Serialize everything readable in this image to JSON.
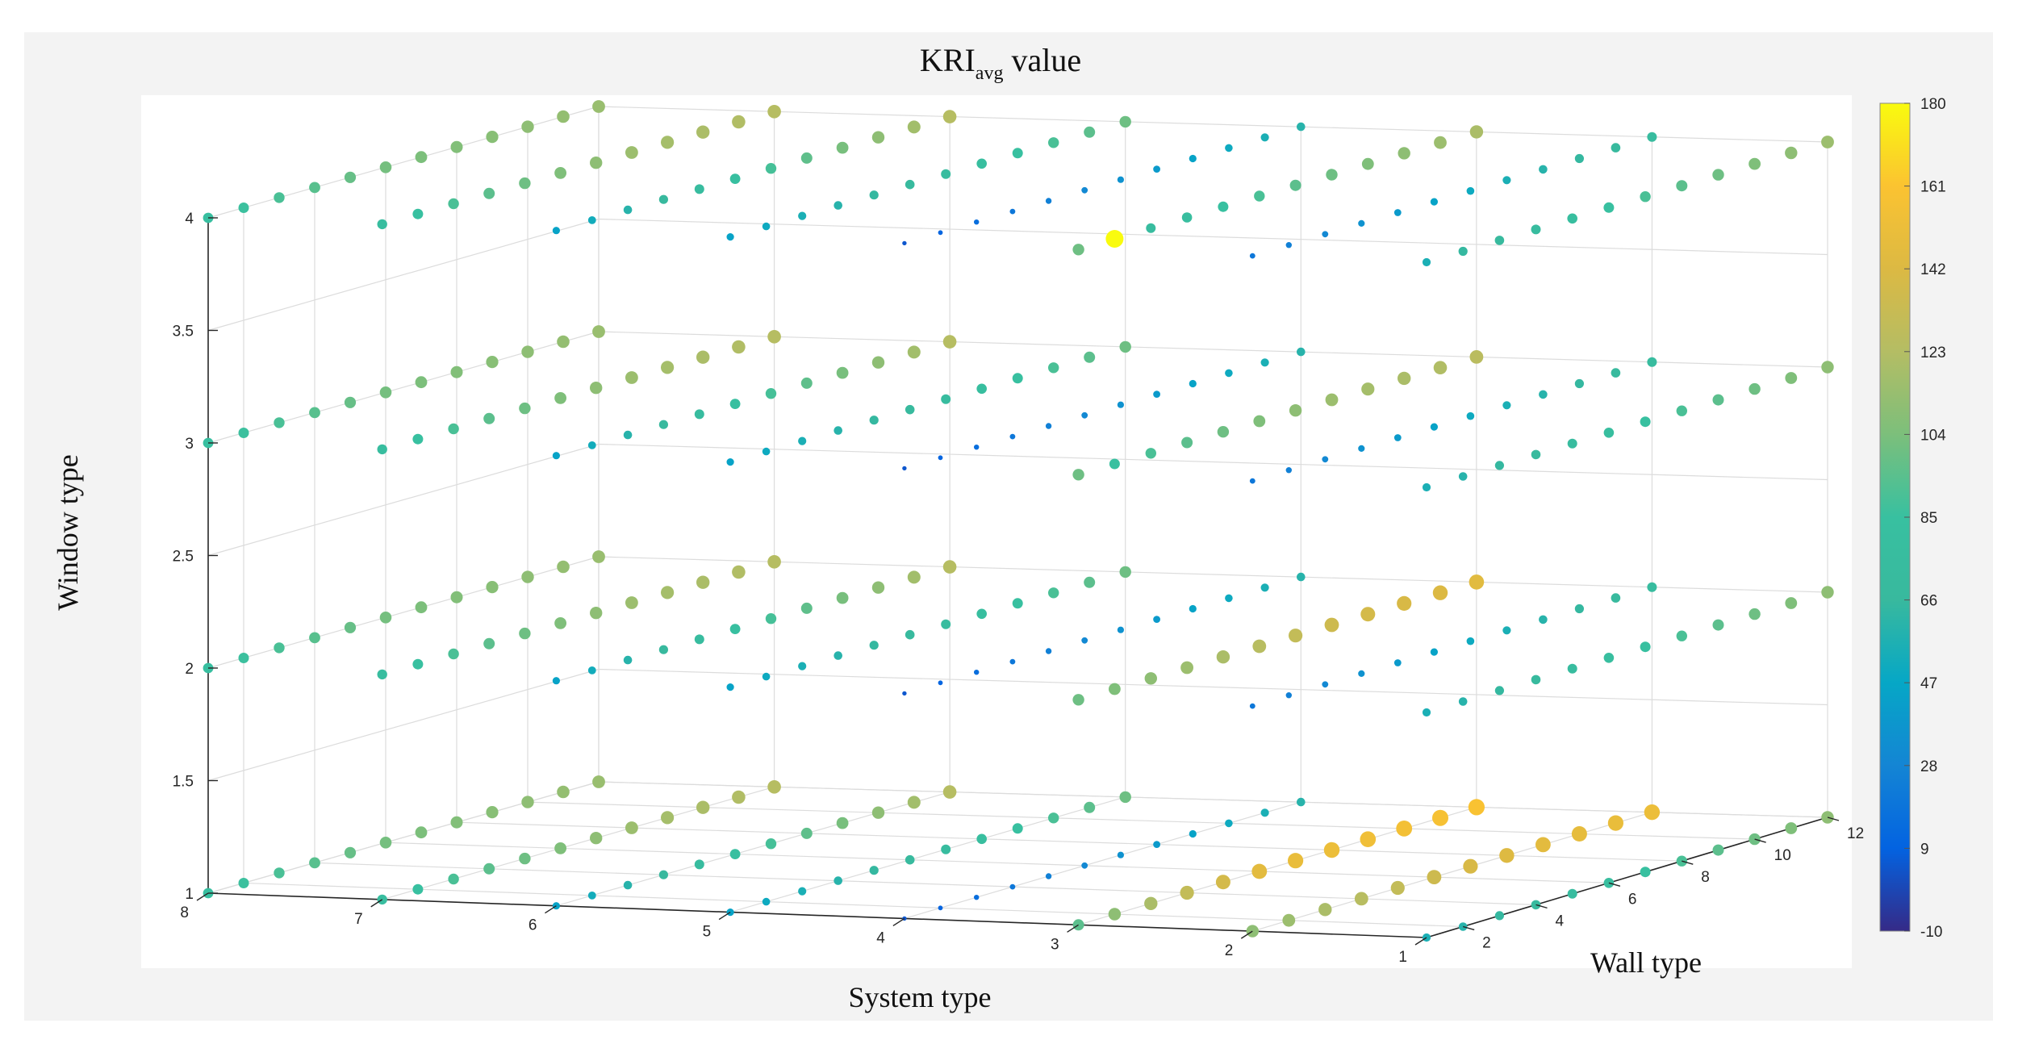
{
  "chart_data": {
    "type": "scatter",
    "dimension": "3d",
    "title": "KRIavg value",
    "title_main": "KRI",
    "title_sub": "avg",
    "title_rest": " value",
    "xlabel": "System type",
    "ylabel": "Wall type",
    "zlabel": "Window type",
    "x_ticks": [
      "1",
      "2",
      "3",
      "4",
      "5",
      "6",
      "7",
      "8"
    ],
    "y_ticks": [
      "2",
      "4",
      "6",
      "8",
      "10",
      "12"
    ],
    "z_ticks": [
      "1",
      "1.5",
      "2",
      "2.5",
      "3",
      "3.5",
      "4"
    ],
    "xlim": [
      1,
      8
    ],
    "ylim": [
      1,
      12
    ],
    "zlim": [
      1,
      4
    ],
    "grid": true,
    "colorbar": {
      "colormap": "parula",
      "range": [
        -10,
        180
      ],
      "ticks": [
        "180",
        "161",
        "142",
        "123",
        "104",
        "85",
        "66",
        "47",
        "28",
        "9",
        "-10"
      ]
    },
    "series_note": "Point color and size encode KRIavg; values estimated from colorbar",
    "layers": [
      {
        "window_type": 4,
        "values_by_system": [
          [
            55,
            65,
            70,
            75,
            80,
            85,
            90,
            95,
            100,
            105,
            110,
            115
          ],
          [
            20,
            25,
            30,
            35,
            40,
            45,
            50,
            55,
            60,
            65,
            70,
            75
          ],
          [
            100,
            180,
            75,
            80,
            85,
            90,
            95,
            100,
            105,
            110,
            115,
            120
          ],
          [
            5,
            10,
            15,
            20,
            25,
            30,
            35,
            40,
            45,
            50,
            55,
            60
          ],
          [
            45,
            50,
            55,
            60,
            65,
            70,
            75,
            80,
            85,
            90,
            95,
            100
          ],
          [
            45,
            52,
            60,
            67,
            75,
            82,
            89,
            96,
            103,
            110,
            117,
            124
          ],
          [
            78,
            84,
            90,
            95,
            100,
            105,
            110,
            115,
            118,
            120,
            122,
            124
          ],
          [
            82,
            86,
            90,
            94,
            98,
            102,
            104,
            106,
            108,
            110,
            112,
            114
          ]
        ]
      },
      {
        "window_type": 3,
        "values_by_system": [
          [
            55,
            60,
            65,
            70,
            75,
            80,
            85,
            90,
            95,
            100,
            105,
            110
          ],
          [
            20,
            25,
            30,
            35,
            40,
            45,
            50,
            55,
            60,
            65,
            70,
            75
          ],
          [
            100,
            85,
            90,
            95,
            100,
            105,
            110,
            115,
            118,
            120,
            122,
            126
          ],
          [
            5,
            10,
            15,
            20,
            25,
            30,
            35,
            40,
            45,
            50,
            55,
            60
          ],
          [
            45,
            50,
            55,
            60,
            65,
            70,
            75,
            80,
            85,
            90,
            95,
            100
          ],
          [
            45,
            52,
            60,
            67,
            75,
            82,
            89,
            96,
            103,
            110,
            117,
            124
          ],
          [
            78,
            84,
            90,
            95,
            100,
            105,
            110,
            115,
            118,
            120,
            122,
            124
          ],
          [
            82,
            86,
            90,
            94,
            98,
            102,
            104,
            106,
            108,
            110,
            112,
            114
          ]
        ]
      },
      {
        "window_type": 2,
        "values_by_system": [
          [
            55,
            60,
            65,
            70,
            75,
            80,
            85,
            90,
            95,
            100,
            105,
            110
          ],
          [
            20,
            25,
            30,
            35,
            40,
            45,
            50,
            55,
            60,
            65,
            70,
            75
          ],
          [
            100,
            105,
            110,
            115,
            120,
            125,
            130,
            135,
            138,
            140,
            142,
            145
          ],
          [
            5,
            10,
            15,
            20,
            25,
            30,
            35,
            40,
            45,
            50,
            55,
            60
          ],
          [
            45,
            50,
            55,
            60,
            65,
            70,
            75,
            80,
            85,
            90,
            95,
            100
          ],
          [
            45,
            52,
            60,
            67,
            75,
            82,
            89,
            96,
            103,
            110,
            117,
            124
          ],
          [
            78,
            84,
            90,
            95,
            100,
            105,
            110,
            115,
            118,
            120,
            122,
            124
          ],
          [
            82,
            86,
            90,
            94,
            98,
            102,
            104,
            106,
            108,
            110,
            112,
            114
          ]
        ]
      },
      {
        "window_type": 1,
        "values_by_system": [
          [
            55,
            60,
            65,
            70,
            75,
            80,
            85,
            90,
            95,
            100,
            105,
            110
          ],
          [
            110,
            115,
            120,
            125,
            130,
            135,
            140,
            143,
            146,
            148,
            150,
            152
          ],
          [
            95,
            110,
            120,
            130,
            138,
            146,
            150,
            152,
            154,
            156,
            158,
            160
          ],
          [
            5,
            10,
            15,
            20,
            25,
            30,
            35,
            40,
            45,
            50,
            55,
            60
          ],
          [
            45,
            50,
            55,
            60,
            65,
            70,
            75,
            80,
            85,
            90,
            95,
            100
          ],
          [
            45,
            52,
            60,
            67,
            75,
            82,
            89,
            96,
            103,
            110,
            117,
            124
          ],
          [
            78,
            84,
            90,
            95,
            100,
            105,
            110,
            115,
            118,
            120,
            122,
            124
          ],
          [
            82,
            86,
            90,
            94,
            98,
            102,
            104,
            106,
            108,
            110,
            112,
            114
          ]
        ]
      }
    ]
  }
}
